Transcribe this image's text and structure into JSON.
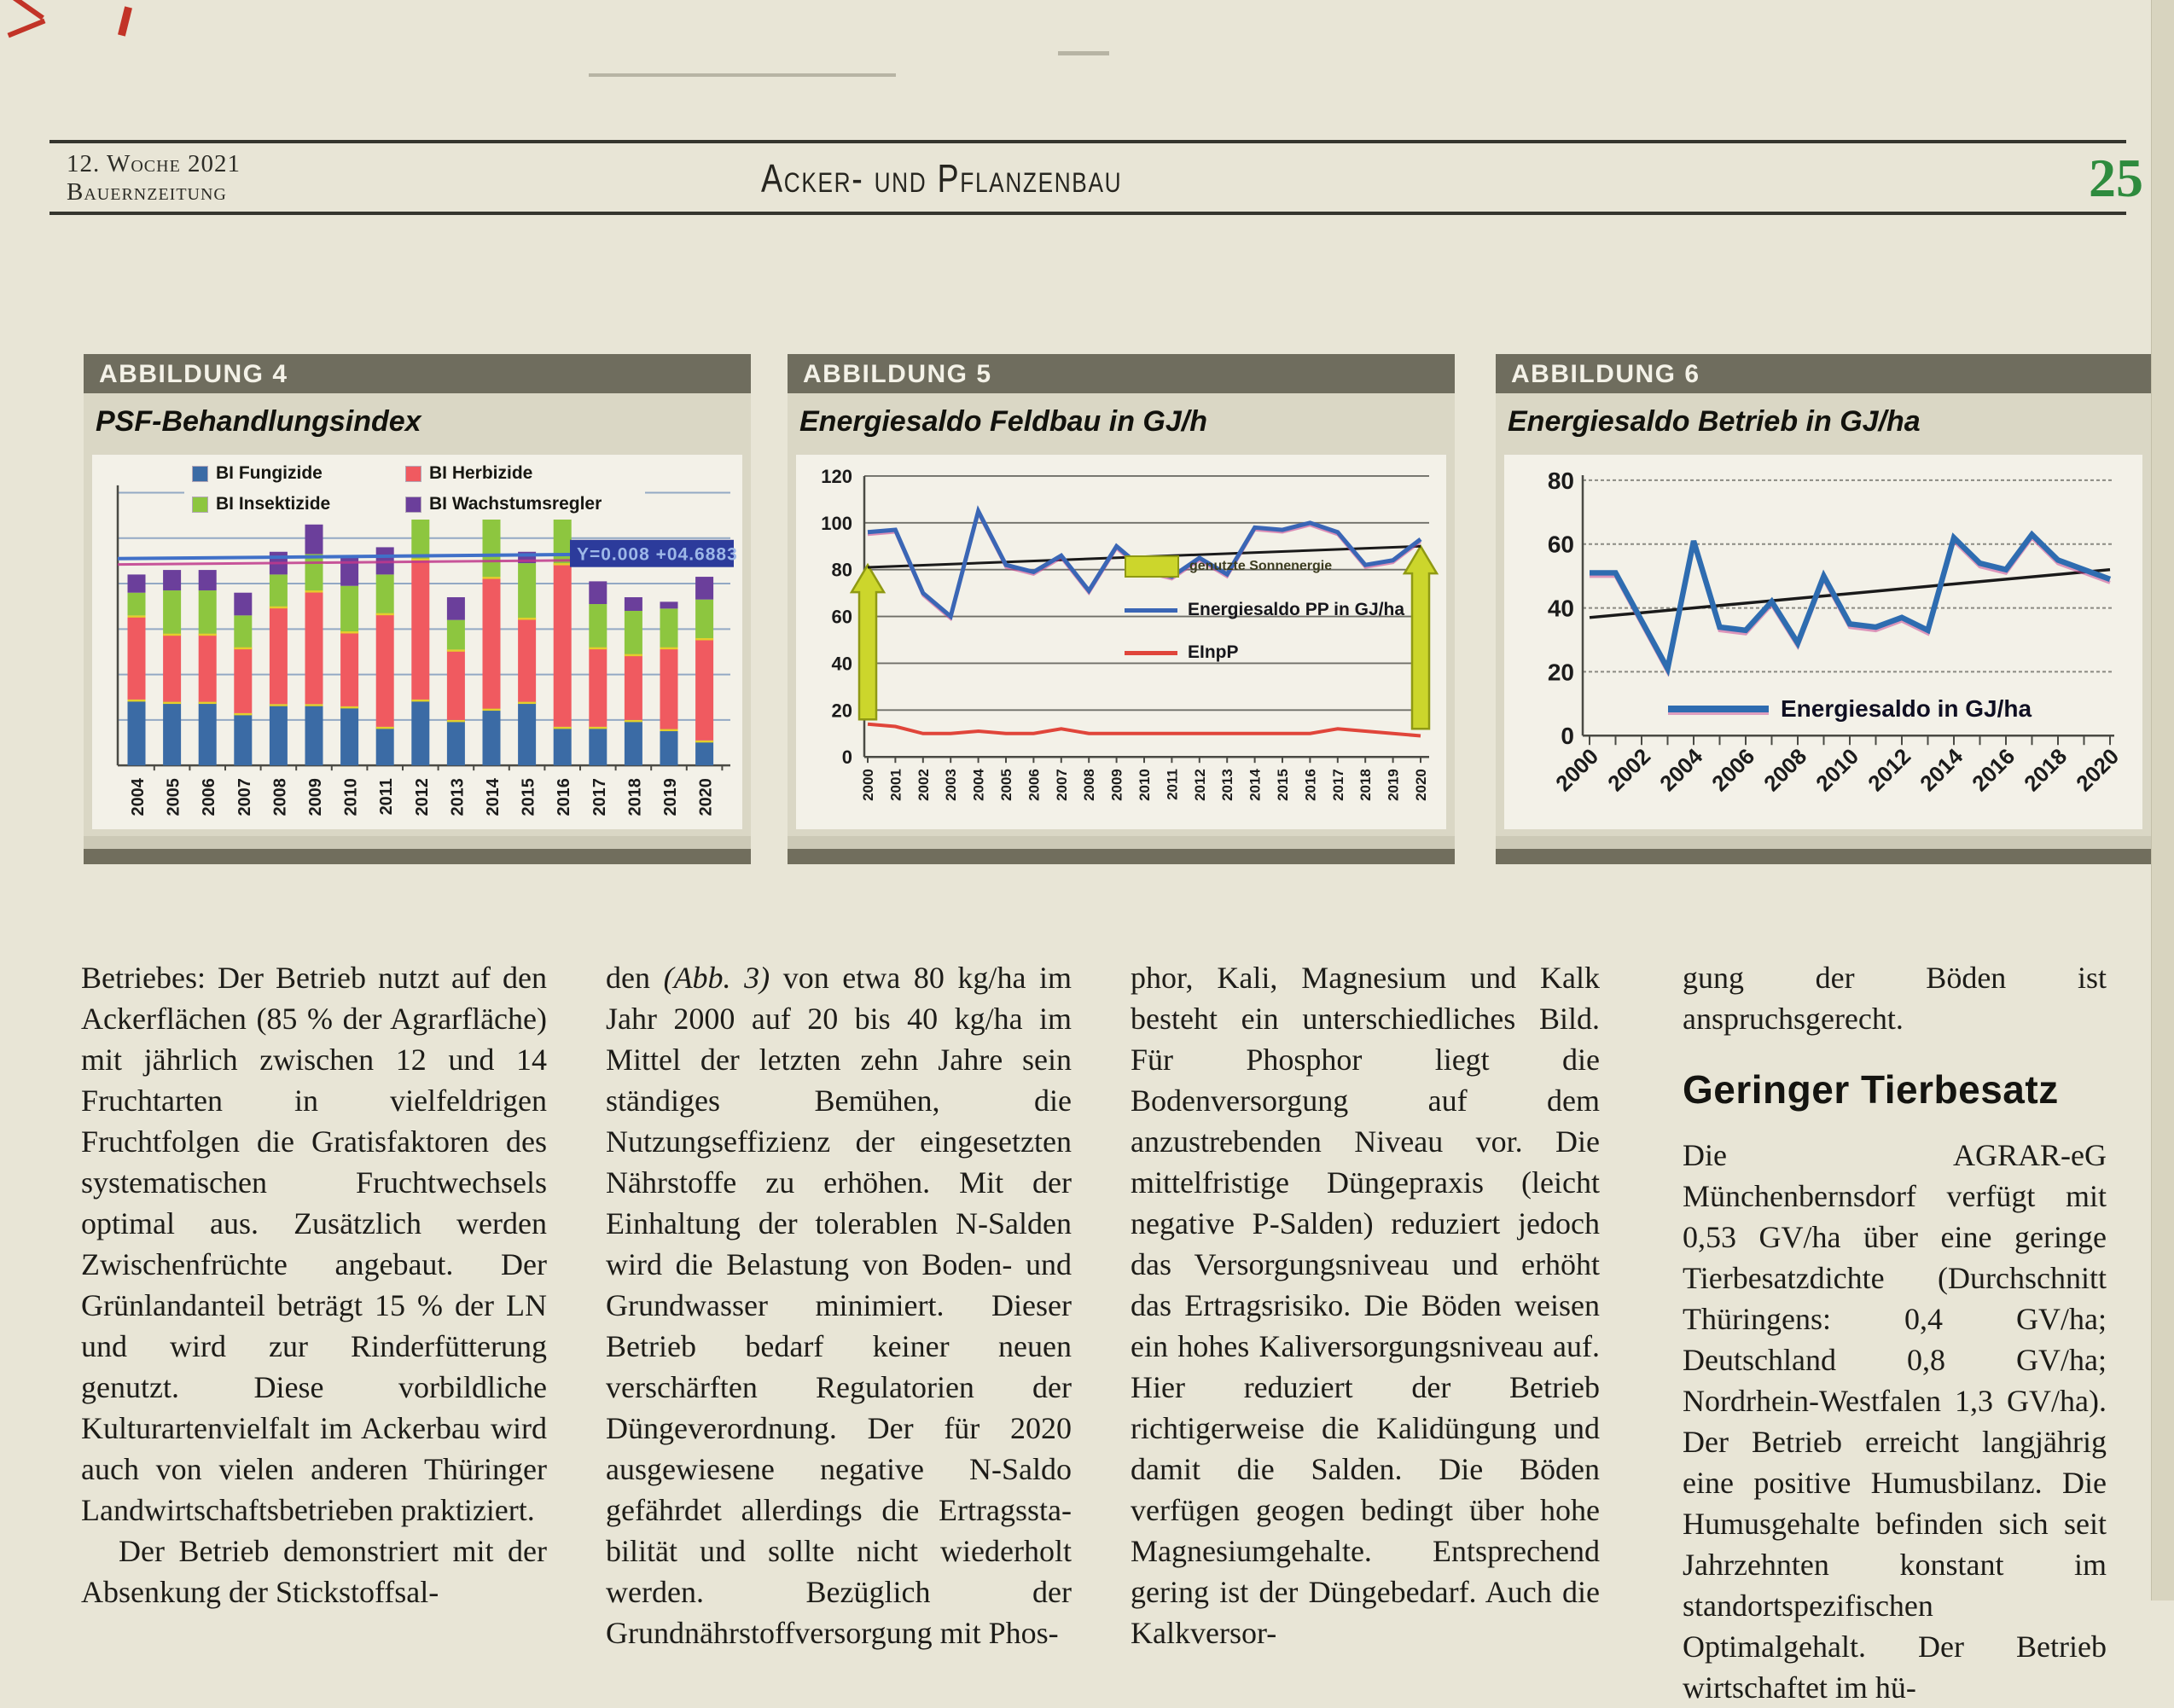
{
  "header": {
    "issue": "12. Woche 2021",
    "paper": "Bauernzeitung",
    "section": "Acker- und Pflanzenbau",
    "page_number": "25",
    "page_number_color": "#2e8b3e"
  },
  "figures": [
    {
      "tag": "ABBILDUNG 4",
      "title": "PSF-Behandlungsindex"
    },
    {
      "tag": "ABBILDUNG 5",
      "title": "Energiesaldo Feldbau in GJ/h"
    },
    {
      "tag": "ABBILDUNG 6",
      "title": "Energiesaldo Betrieb in GJ/ha"
    }
  ],
  "chart_data": [
    {
      "type": "bar",
      "stacked": true,
      "title": "PSF-Behandlungsindex",
      "categories": [
        2004,
        2005,
        2006,
        2007,
        2008,
        2009,
        2010,
        2011,
        2012,
        2013,
        2014,
        2015,
        2016,
        2017,
        2018,
        2019,
        2020
      ],
      "series": [
        {
          "name": "BI Fungizide",
          "color": "#3b6ba5",
          "values": [
            1.45,
            1.4,
            1.4,
            1.15,
            1.35,
            1.35,
            1.3,
            0.85,
            1.45,
            1.0,
            1.25,
            1.4,
            0.85,
            0.85,
            1.0,
            0.8,
            0.55
          ]
        },
        {
          "name": "BI Herbizide",
          "color": "#f05a60",
          "values": [
            1.85,
            1.5,
            1.5,
            1.45,
            2.15,
            2.5,
            1.65,
            2.5,
            3.1,
            1.55,
            2.9,
            1.85,
            3.6,
            1.75,
            1.45,
            1.8,
            2.25
          ]
        },
        {
          "name": "BI Insektizide",
          "color": "#8dc63f",
          "values": [
            0.5,
            0.95,
            0.95,
            0.7,
            0.7,
            0.8,
            1.0,
            0.85,
            0.9,
            0.65,
            1.35,
            1.2,
            1.4,
            0.95,
            0.95,
            0.85,
            0.85
          ]
        },
        {
          "name": "BI Wachstumsregler",
          "color": "#6b3f9b",
          "values": [
            0.4,
            0.45,
            0.45,
            0.5,
            0.5,
            0.65,
            0.65,
            0.6,
            0.55,
            0.5,
            0.15,
            0.25,
            0.2,
            0.5,
            0.3,
            0.15,
            0.5
          ]
        }
      ],
      "ylim": [
        0,
        6.5
      ],
      "gridline_step": 1,
      "legend_position": "top-left",
      "trendline": {
        "label": "Y=0.008 +04.6883",
        "color": "#4070c8",
        "start": 4.55,
        "end": 4.67
      },
      "trendline2_color": "#c0398c"
    },
    {
      "type": "line",
      "title": "Energiesaldo Feldbau in GJ/h",
      "x": [
        2000,
        2001,
        2002,
        2003,
        2004,
        2005,
        2006,
        2007,
        2008,
        2009,
        2010,
        2011,
        2012,
        2013,
        2014,
        2015,
        2016,
        2017,
        2018,
        2019,
        2020
      ],
      "ylim": [
        0,
        120
      ],
      "yticks": [
        0,
        20,
        40,
        60,
        80,
        100,
        120
      ],
      "series": [
        {
          "name": "Energiesaldo PP in GJ/ha",
          "color": "#3a66b5",
          "values": [
            96,
            97,
            70,
            60,
            105,
            82,
            79,
            86,
            71,
            90,
            80,
            77,
            85,
            78,
            98,
            97,
            100,
            96,
            82,
            84,
            93
          ]
        },
        {
          "name": "EInpP",
          "color": "#e0453a",
          "values": [
            14,
            13,
            10,
            10,
            11,
            10,
            10,
            12,
            10,
            10,
            10,
            10,
            10,
            10,
            10,
            10,
            10,
            12,
            11,
            10,
            9
          ]
        }
      ],
      "legend_extra": {
        "name": "genutzte Sonnenergie",
        "color": "#ccd62c",
        "border": "#8f9913"
      },
      "trendline": {
        "color": "#1a1a1a",
        "start": 81,
        "end": 90
      },
      "arrows": [
        {
          "x": 2000,
          "from": 16,
          "to": 82
        },
        {
          "x": 2020,
          "from": 12,
          "to": 90
        }
      ],
      "legend_position": "center-right"
    },
    {
      "type": "line",
      "title": "Energiesaldo Betrieb in GJ/ha",
      "x": [
        2000,
        2001,
        2002,
        2003,
        2004,
        2005,
        2006,
        2007,
        2008,
        2009,
        2010,
        2011,
        2012,
        2013,
        2014,
        2015,
        2016,
        2017,
        2018,
        2019,
        2020
      ],
      "ylim": [
        0,
        80
      ],
      "yticks": [
        0,
        20,
        40,
        60,
        80
      ],
      "series": [
        {
          "name": "Energiesaldo in GJ/ha",
          "color": "#2e6cb0",
          "values": [
            51,
            51,
            36,
            21,
            61,
            34,
            33,
            42,
            29,
            50,
            35,
            34,
            37,
            33,
            62,
            54,
            52,
            63,
            55,
            52,
            49
          ]
        }
      ],
      "trendline": {
        "color": "#1a1a1a",
        "start": 37,
        "end": 52
      },
      "legend_position": "inside-bottom-left"
    }
  ],
  "article": {
    "col1_p1": "Betriebes: Der Betrieb nutzt auf den Ackerflächen (85 % der Agrarfläche) mit jährlich zwischen 12 und 14 Fruchtarten in vielfeldrigen Fruchtfolgen die Gratisfaktoren des systematischen Fruchtwechsels optimal aus. Zusätzlich werden Zwischenfrüchte angebaut. Der Grünlandanteil beträgt 15 % der LN und wird zur Rinderfütterung genutzt. Diese vorbildliche Kulturartenvielfalt im Ackerbau wird auch von vielen anderen Thüringer Landwirtschaftsbetrieben praktiziert.",
    "col1_p2": "Der Betrieb demonstriert mit der Absenkung der Stickstoffsal-",
    "col2_pre": "den ",
    "col2_italic": "(Abb. 3)",
    "col2_rest": " von etwa 80 kg/ha im Jahr 2000 auf 20 bis 40 kg/ha im Mittel der letzten zehn Jahre sein ständiges Bemühen, die Nutzungseffizienz der eingesetzten Nährstoffe zu erhöhen. Mit der Einhaltung der tolerablen N-Salden wird die Belastung von Boden- und Grundwasser minimiert. Dieser Betrieb bedarf keiner neuen verschärften Regulatorien der Düngeverordnung. Der für 2020 ausgewiesene negative N-Saldo gefährdet allerdings die Ertragssta-bilität und sollte nicht wiederholt werden. Bezüglich der Grundnährstoffversorgung mit Phos-",
    "col3_p1": "phor, Kali, Magnesium und Kalk besteht ein unterschiedliches Bild. Für Phosphor liegt die Bodenversorgung auf dem anzustrebenden Niveau vor. Die mittelfristige Düngepraxis (leicht negative P-Salden) reduziert jedoch das Versorgungsniveau und erhöht das Ertragsrisiko. Die Böden weisen ein hohes Kaliversorgungsniveau auf. Hier reduziert der Betrieb richtigerweise die Kalidüngung und damit die Salden. Die Böden verfügen geogen bedingt über hohe Magnesiumgehalte. Entsprechend gering ist der Düngebedarf. Auch die Kalkversor-",
    "col4_p1": "gung der Böden ist anspruchsgerecht.",
    "col4_heading": "Geringer Tierbesatz",
    "col4_p2": "Die AGRAR-eG Münchenbernsdorf verfügt mit 0,53 GV/ha über eine geringe Tierbesatzdichte (Durchschnitt Thüringens: 0,4 GV/ha; Deutschland 0,8 GV/ha; Nordrhein-Westfalen 1,3 GV/ha). Der Betrieb erreicht langjährig eine positive Humusbilanz. Die Humusgehalte befinden sich seit Jahrzehnten konstant im standortspezifischen Optimalgehalt. Der Betrieb wirtschaftet im hü-"
  }
}
